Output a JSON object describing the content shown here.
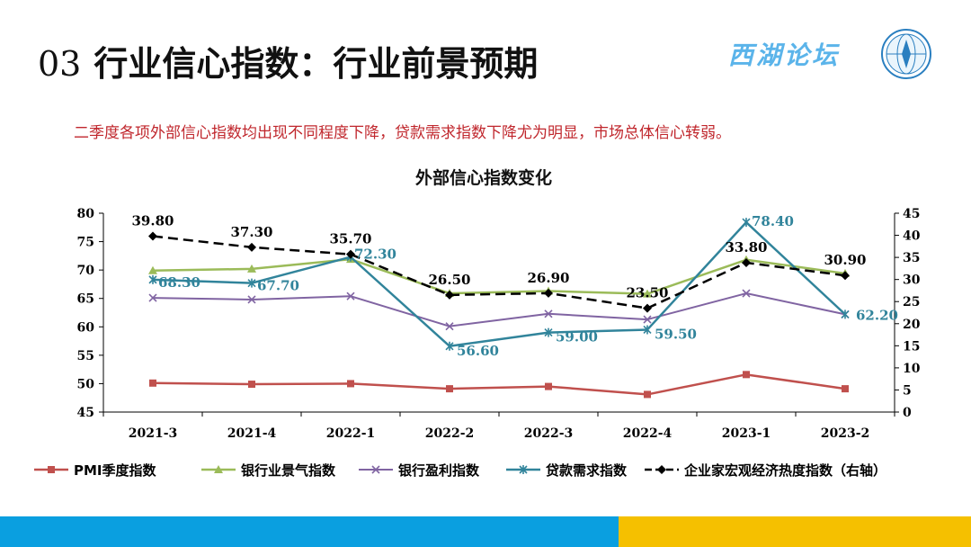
{
  "header": {
    "number": "03",
    "title": "行业信心指数：行业前景预期"
  },
  "logo": {
    "text": "西湖论坛",
    "emblem": "globe-emblem-icon"
  },
  "subtitle": "二季度各项外部信心指数均出现不同程度下降，贷款需求指数下降尤为明显，市场总体信心转弱。",
  "colors": {
    "pmi": "#c0504d",
    "bank_sentiment": "#9bbb59",
    "bank_profit": "#8064a2",
    "loan_demand": "#31849b",
    "macro_heat": "#000000",
    "label_teal": "#31849b",
    "subtitle_red": "#c0272d",
    "footer_blue": "#0a9fe0",
    "footer_yellow": "#f5c000"
  },
  "chart_data": {
    "type": "line",
    "title": "外部信心指数变化",
    "categories": [
      "2021-3",
      "2021-4",
      "2022-1",
      "2022-2",
      "2022-3",
      "2022-4",
      "2023-1",
      "2023-2"
    ],
    "y_left": {
      "min": 45,
      "max": 80,
      "step": 5,
      "ticks": [
        "80",
        "75",
        "70",
        "65",
        "60",
        "55",
        "50",
        "45"
      ]
    },
    "y_right": {
      "min": 0,
      "max": 45,
      "step": 5,
      "ticks": [
        "45",
        "40",
        "35",
        "30",
        "25",
        "20",
        "15",
        "10",
        "5",
        "0"
      ]
    },
    "legend_position": "bottom",
    "grid": false,
    "series": [
      {
        "name": "PMI季度指数",
        "axis": "left",
        "values": [
          50.1,
          49.9,
          50.0,
          49.1,
          49.5,
          48.1,
          51.6,
          49.1
        ]
      },
      {
        "name": "银行业景气指数",
        "axis": "left",
        "values": [
          69.9,
          70.2,
          71.9,
          65.9,
          66.3,
          65.8,
          71.8,
          69.4
        ]
      },
      {
        "name": "银行盈利指数",
        "axis": "left",
        "values": [
          65.1,
          64.8,
          65.4,
          60.1,
          62.3,
          61.3,
          65.9,
          62.2
        ]
      },
      {
        "name": "贷款需求指数",
        "axis": "left",
        "values": [
          68.3,
          67.7,
          72.3,
          56.6,
          59.0,
          59.5,
          78.4,
          62.2
        ],
        "labels": [
          "68.30",
          "67.70",
          "72.30",
          "56.60",
          "59.00",
          "59.50",
          "78.40",
          "62.20"
        ]
      },
      {
        "name": "企业家宏观经济热度指数（右轴）",
        "axis": "right",
        "values": [
          39.8,
          37.3,
          35.7,
          26.5,
          26.9,
          23.5,
          33.8,
          30.9
        ],
        "labels": [
          "39.80",
          "37.30",
          "35.70",
          "26.50",
          "26.90",
          "23.50",
          "33.80",
          "30.90"
        ]
      }
    ]
  }
}
